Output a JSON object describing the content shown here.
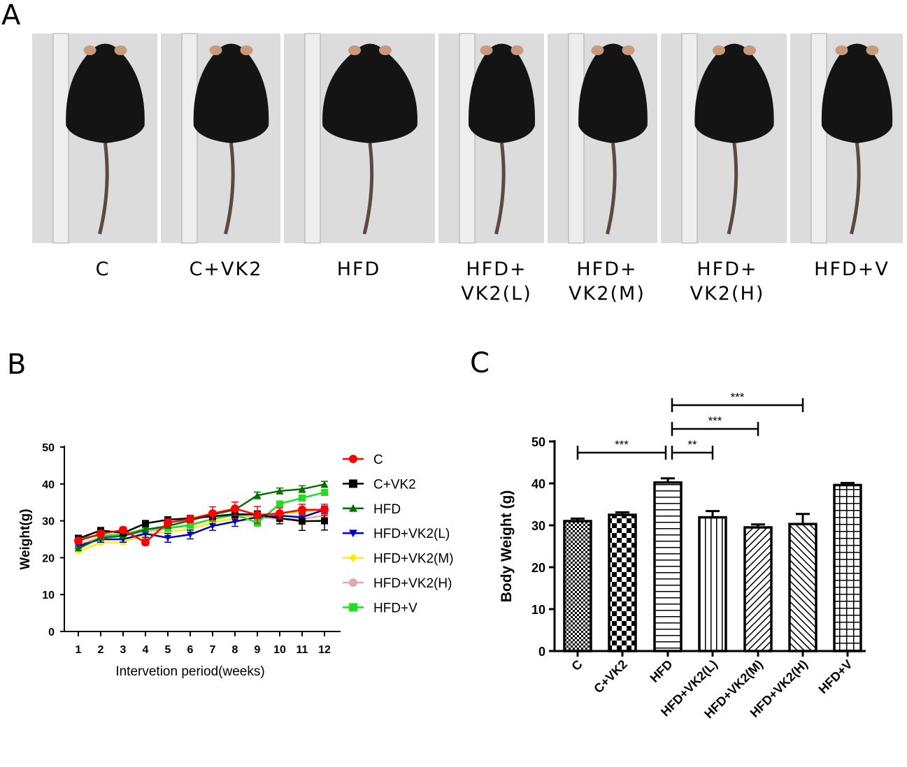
{
  "panels": {
    "a": "A",
    "b": "B",
    "c": "C"
  },
  "photo_groups": [
    {
      "line1": "C",
      "line2": ""
    },
    {
      "line1": "C+VK2",
      "line2": ""
    },
    {
      "line1": "HFD",
      "line2": ""
    },
    {
      "line1": "HFD+",
      "line2": "VK2(L)"
    },
    {
      "line1": "HFD+",
      "line2": "VK2(M)"
    },
    {
      "line1": "HFD+",
      "line2": "VK2(H)"
    },
    {
      "line1": "HFD+V",
      "line2": ""
    }
  ],
  "chart_data": [
    {
      "type": "line",
      "title": "",
      "xlabel": "Intervetion period(weeks)",
      "ylabel": "Weight(g)",
      "ylim": [
        0,
        50
      ],
      "yticks": [
        "0",
        "10",
        "20",
        "30",
        "40",
        "50"
      ],
      "x": [
        1,
        2,
        3,
        4,
        5,
        6,
        7,
        8,
        9,
        10,
        11,
        12
      ],
      "xticks": [
        "1",
        "2",
        "3",
        "4",
        "5",
        "6",
        "7",
        "8",
        "9",
        "10",
        "11",
        "12"
      ],
      "legend_position": "right",
      "series": [
        {
          "name": "C",
          "color": "#ff0000",
          "marker": "circle",
          "values": [
            24.6,
            26.5,
            27.5,
            24.2,
            29.5,
            30.5,
            32,
            33.3,
            31.6,
            32,
            33,
            33
          ],
          "error": [
            0.8,
            0.8,
            0.8,
            0.8,
            1,
            1,
            1.8,
            1.8,
            2.3,
            1.5,
            1.5,
            1.5
          ]
        },
        {
          "name": "C+VK2",
          "color": "#000000",
          "marker": "square",
          "values": [
            25.2,
            27.4,
            26.7,
            29.3,
            30.3,
            30.7,
            31.2,
            31.8,
            31.7,
            30.7,
            29.9,
            30
          ],
          "error": [
            0.6,
            0.6,
            0.6,
            0.6,
            0.6,
            0.8,
            0.8,
            1,
            1,
            1.5,
            2.5,
            2.5
          ]
        },
        {
          "name": "HFD",
          "color": "#007000",
          "marker": "triangle-up",
          "values": [
            22.5,
            25.4,
            25.9,
            27.6,
            28.6,
            30.1,
            31.7,
            33,
            36.9,
            38.1,
            38.6,
            39.9
          ],
          "error": [
            0.6,
            0.6,
            0.6,
            0.6,
            0.6,
            0.6,
            0.8,
            0.8,
            0.9,
            0.8,
            0.9,
            0.8
          ]
        },
        {
          "name": "HFD+VK2(L)",
          "color": "#0000cc",
          "marker": "triangle-down",
          "values": [
            23.2,
            25,
            25,
            26.5,
            25.4,
            26.3,
            28.6,
            29.8,
            31,
            31.4,
            31,
            33
          ],
          "error": [
            0.6,
            0.8,
            0.8,
            1,
            1.2,
            1.2,
            1.2,
            1.3,
            1,
            1,
            1,
            1
          ]
        },
        {
          "name": "HFD+VK2(M)",
          "color": "#ffee00",
          "marker": "diamond",
          "values": [
            21.8,
            24.1,
            24.2,
            26.3,
            27,
            27.8,
            29.5,
            30.7,
            31.4,
            32,
            32.4,
            33
          ],
          "error": [
            0.5,
            0.5,
            0.5,
            0.6,
            0.6,
            0.6,
            0.6,
            0.6,
            0.6,
            0.6,
            0.6,
            0.6
          ]
        },
        {
          "name": "HFD+VK2(H)",
          "color": "#e0a8a8",
          "marker": "circle",
          "values": [
            23.5,
            25.5,
            26,
            27,
            28,
            29,
            30.5,
            31.5,
            31,
            30.5,
            30.5,
            31.5
          ],
          "error": [
            0.6,
            0.6,
            0.6,
            0.6,
            0.6,
            0.6,
            0.8,
            0.8,
            0.8,
            0.8,
            1,
            1
          ]
        },
        {
          "name": "HFD+V",
          "color": "#22dd22",
          "marker": "square",
          "values": [
            25.4,
            26,
            26.3,
            27.8,
            28,
            28.8,
            30.5,
            31.7,
            29.5,
            34.6,
            36.2,
            37.7
          ],
          "error": [
            0.5,
            0.5,
            0.5,
            0.5,
            0.5,
            0.5,
            0.6,
            0.6,
            1,
            0.6,
            0.8,
            0.8
          ]
        }
      ]
    },
    {
      "type": "bar",
      "title": "",
      "xlabel": "",
      "ylabel": "Body Weight (g)",
      "ylim": [
        0,
        50
      ],
      "yticks": [
        "0",
        "10",
        "20",
        "30",
        "40",
        "50"
      ],
      "categories": [
        "C",
        "C+VK2",
        "HFD",
        "HFD+VK2(L)",
        "HFD+VK2(M)",
        "HFD+VK2(H)",
        "HFD+V"
      ],
      "values": [
        31.0,
        32.5,
        40.2,
        31.9,
        29.5,
        30.3,
        39.6
      ],
      "error": [
        0.6,
        0.6,
        1.0,
        1.5,
        0.7,
        2.4,
        0.5
      ],
      "patterns": [
        "fine-checker",
        "checker",
        "horizontal",
        "vertical",
        "diag-up",
        "diag-down",
        "grid"
      ],
      "significance": [
        {
          "from": "C",
          "to": "HFD",
          "label": "***"
        },
        {
          "from": "HFD",
          "to": "HFD+VK2(L)",
          "label": "**"
        },
        {
          "from": "HFD",
          "to": "HFD+VK2(M)",
          "label": "***"
        },
        {
          "from": "HFD",
          "to": "HFD+VK2(H)",
          "label": "***"
        }
      ]
    }
  ]
}
